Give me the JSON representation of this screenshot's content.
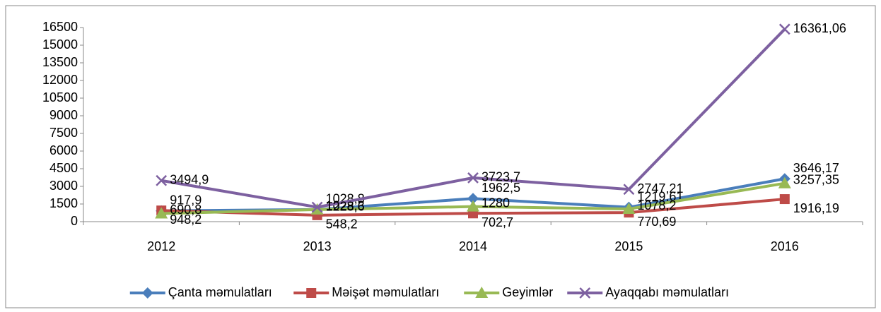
{
  "chart_data": {
    "type": "line",
    "categories": [
      "2012",
      "2013",
      "2014",
      "2015",
      "2016"
    ],
    "ylim": [
      0,
      16500
    ],
    "yticks": [
      0,
      1500,
      3000,
      4500,
      6000,
      7500,
      9000,
      10500,
      12000,
      13500,
      15000,
      16500
    ],
    "legend": "bottom",
    "series": [
      {
        "name": "Çanta məmulatları",
        "color": "#4a7ebb",
        "marker": "diamond",
        "values": [
          917.9,
          1028.8,
          1962.5,
          1219.61,
          3646.17
        ],
        "value_labels": [
          "917,9",
          "1028,8",
          "1962,5",
          "1219,61",
          "3646,17"
        ]
      },
      {
        "name": "Məişət məmulatları",
        "color": "#be4b48",
        "marker": "square",
        "values": [
          948.2,
          548.2,
          702.7,
          770.69,
          1916.19
        ],
        "value_labels": [
          "948,2",
          "548,2",
          "702,7",
          "770,69",
          "1916,19"
        ]
      },
      {
        "name": "Geyimlər",
        "color": "#98b954",
        "marker": "triangle",
        "values": [
          690.8,
          1028.3,
          1280,
          1078.2,
          3257.35
        ],
        "value_labels": [
          "690,8",
          "1028,3",
          "1280",
          "1078,2",
          "3257,35"
        ]
      },
      {
        "name": "Ayaqqabı məmulatları",
        "color": "#7d60a0",
        "marker": "x",
        "values": [
          3494.9,
          1228.6,
          3723.7,
          2747.21,
          16361.06
        ],
        "value_labels": [
          "3494,9",
          "1228,6",
          "3723,7",
          "2747,21",
          "16361,06"
        ]
      }
    ]
  }
}
